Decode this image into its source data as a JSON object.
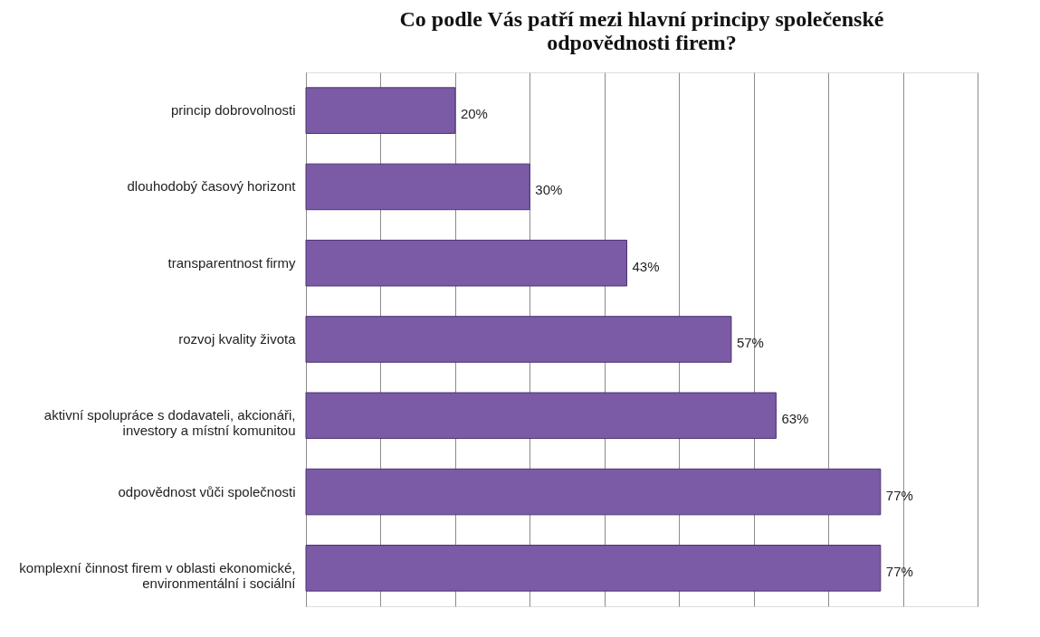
{
  "chart_data": {
    "type": "bar",
    "orientation": "horizontal",
    "title": "Co podle Vás patří mezi hlavní principy společenské odpovědnosti  firem?",
    "categories": [
      "princip dobrovolnosti",
      "dlouhodobý časový horizont",
      "transparentnost firmy",
      "rozvoj kvality života",
      "aktivní spolupráce s dodavateli, akcionáři, investory a místní komunitou",
      "odpovědnost vůči společnosti",
      "komplexní činnost firem v oblasti ekonomické, environmentální i sociální"
    ],
    "values": [
      20,
      30,
      43,
      57,
      63,
      77,
      77
    ],
    "value_labels": [
      "20%",
      "30%",
      "43%",
      "57%",
      "63%",
      "77%",
      "77%"
    ],
    "color": "#7b5aa6",
    "xlim": [
      0,
      90
    ],
    "xticks": [
      {
        "value": 0,
        "label": null
      },
      {
        "value": 10,
        "label": null
      },
      {
        "value": 20,
        "label": null
      },
      {
        "value": 30,
        "label": null
      },
      {
        "value": 40,
        "label": null
      },
      {
        "value": 50,
        "label": null
      },
      {
        "value": 60,
        "label": null
      },
      {
        "value": 70,
        "label": null
      },
      {
        "value": 80,
        "label": null
      },
      {
        "value": 90,
        "label": null
      }
    ],
    "grid": "x",
    "tick_labels": "y"
  }
}
